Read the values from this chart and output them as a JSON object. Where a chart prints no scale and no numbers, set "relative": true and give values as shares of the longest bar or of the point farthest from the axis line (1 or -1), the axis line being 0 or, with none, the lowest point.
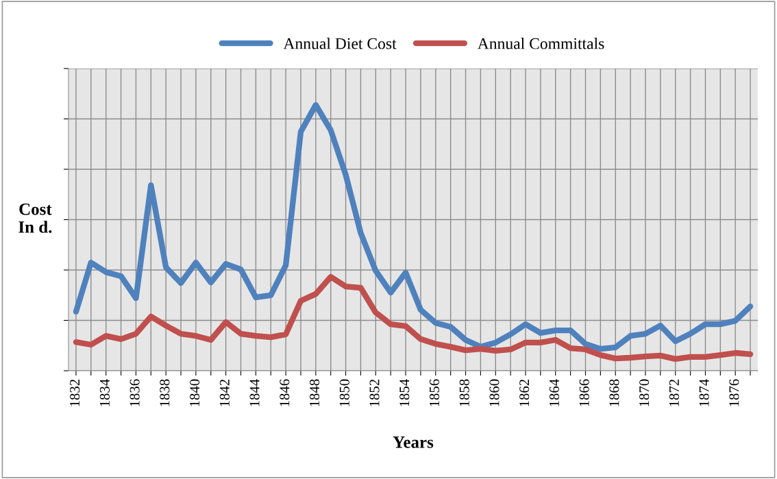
{
  "chart_data": {
    "type": "line",
    "relative": true,
    "xlabel": "Years",
    "ylabel": "Cost\nIn d.",
    "grid": true,
    "legend": "top",
    "marker": "none",
    "line_style": "solid",
    "categories": [
      "1832",
      null,
      "1834",
      null,
      "1836",
      null,
      "1838",
      null,
      "1840",
      null,
      "1842",
      null,
      "1844",
      null,
      "1846",
      null,
      "1848",
      null,
      "1850",
      null,
      "1852",
      null,
      "1854",
      null,
      "1856",
      null,
      "1858",
      null,
      "1860",
      null,
      "1862",
      null,
      "1864",
      null,
      "1866",
      null,
      "1868",
      null,
      "1870",
      null,
      "1872",
      null,
      "1874",
      null,
      "1876",
      null
    ],
    "series": [
      {
        "name": "Annual Diet Cost",
        "color": "#4f81bd",
        "values": [
          0.222,
          0.407,
          0.371,
          0.356,
          0.273,
          0.698,
          0.389,
          0.33,
          0.407,
          0.332,
          0.402,
          0.381,
          0.276,
          0.284,
          0.397,
          0.899,
          1,
          0.905,
          0.737,
          0.518,
          0.376,
          0.294,
          0.369,
          0.229,
          0.18,
          0.165,
          0.116,
          0.09,
          0.106,
          0.137,
          0.175,
          0.142,
          0.152,
          0.152,
          0.101,
          0.082,
          0.088,
          0.131,
          0.139,
          0.17,
          0.111,
          0.139,
          0.175,
          0.175,
          0.188,
          0.242
        ]
      },
      {
        "name": "Annual Committals",
        "color": "#c0504d",
        "values": [
          0.108,
          0.098,
          0.131,
          0.119,
          0.139,
          0.204,
          0.17,
          0.139,
          0.131,
          0.116,
          0.183,
          0.139,
          0.131,
          0.126,
          0.137,
          0.263,
          0.289,
          0.353,
          0.317,
          0.312,
          0.219,
          0.175,
          0.168,
          0.119,
          0.101,
          0.09,
          0.077,
          0.082,
          0.075,
          0.08,
          0.106,
          0.106,
          0.116,
          0.085,
          0.08,
          0.059,
          0.046,
          0.049,
          0.054,
          0.057,
          0.044,
          0.052,
          0.052,
          0.059,
          0.067,
          0.062
        ]
      }
    ]
  }
}
